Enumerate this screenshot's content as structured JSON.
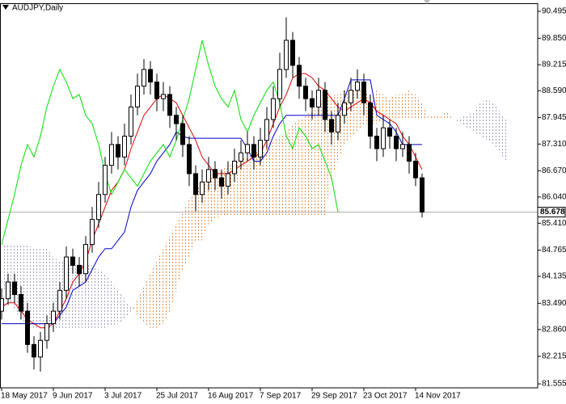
{
  "chart_data": {
    "type": "candlestick",
    "title": "AUDJPY,Daily",
    "categories": [
      "18 May 2017",
      null,
      null,
      null,
      null,
      null,
      null,
      null,
      "9 Jun 2017",
      null,
      null,
      null,
      null,
      null,
      null,
      null,
      "3 Jul 2017",
      null,
      null,
      null,
      null,
      null,
      null,
      null,
      "25 Jul 2017",
      null,
      null,
      null,
      null,
      null,
      null,
      null,
      "16 Aug 2017",
      null,
      null,
      null,
      null,
      null,
      null,
      null,
      "7 Sep 2017",
      null,
      null,
      null,
      null,
      null,
      null,
      null,
      "29 Sep 2017",
      null,
      null,
      null,
      null,
      null,
      null,
      null,
      "23 Oct 2017",
      null,
      null,
      null,
      null,
      null,
      null,
      null,
      "14 Nov 2017",
      null,
      null,
      null,
      null,
      null,
      null,
      null,
      null,
      null,
      null,
      null,
      null,
      null,
      null
    ],
    "candles": {
      "up_color": "#ffffff",
      "down_color": "#000000",
      "open": [
        83.3,
        83.6,
        84.0,
        83.7,
        83.3,
        82.5,
        82.2,
        82.6,
        83.0,
        83.3,
        83.8,
        84.6,
        84.4,
        84.2,
        84.9,
        85.5,
        86.1,
        86.8,
        87.3,
        87.0,
        87.5,
        88.2,
        88.7,
        89.1,
        88.8,
        88.4,
        88.5,
        88.0,
        87.8,
        87.3,
        86.6,
        86.1,
        86.4,
        86.7,
        86.5,
        86.3,
        86.6,
        86.9,
        87.1,
        87.3,
        87.0,
        87.4,
        87.9,
        88.4,
        89.1,
        89.8,
        89.2,
        88.7,
        88.4,
        88.2,
        88.6,
        87.9,
        87.6,
        88.0,
        88.3,
        88.6,
        88.8,
        88.3,
        87.5,
        87.2,
        87.7,
        87.5,
        87.2,
        87.3,
        86.9,
        86.5,
        null,
        null,
        null,
        null,
        null,
        null,
        null,
        null,
        null,
        null,
        null,
        null,
        null
      ],
      "high": [
        83.85,
        84.2,
        84.2,
        83.9,
        83.5,
        82.7,
        82.8,
        83.2,
        83.5,
        84.0,
        84.85,
        84.8,
        84.6,
        85.1,
        85.8,
        86.4,
        87.0,
        87.6,
        87.5,
        87.8,
        88.5,
        89.0,
        89.35,
        89.3,
        89.0,
        88.8,
        88.7,
        88.2,
        88.0,
        87.5,
        86.8,
        86.7,
        87.0,
        86.9,
        86.7,
        86.9,
        87.2,
        87.4,
        87.6,
        87.5,
        87.7,
        88.2,
        88.7,
        89.5,
        90.35,
        90.0,
        89.4,
        88.9,
        88.6,
        88.9,
        88.8,
        88.1,
        88.3,
        88.6,
        88.9,
        89.1,
        89.0,
        88.5,
        87.7,
        88.0,
        87.9,
        87.7,
        87.6,
        87.5,
        87.1,
        86.6,
        null,
        null,
        null,
        null,
        null,
        null,
        null,
        null,
        null,
        null,
        null,
        null,
        null
      ],
      "low": [
        83.1,
        83.45,
        83.5,
        83.1,
        82.3,
        81.9,
        81.85,
        82.4,
        82.8,
        83.1,
        83.6,
        84.2,
        83.9,
        84.0,
        84.7,
        85.3,
        85.9,
        86.6,
        86.7,
        86.8,
        87.3,
        88.0,
        88.5,
        88.5,
        88.1,
        88.1,
        87.7,
        87.4,
        87.0,
        86.3,
        85.7,
        85.9,
        86.2,
        86.2,
        86.0,
        86.1,
        86.4,
        86.7,
        86.9,
        86.7,
        86.8,
        87.2,
        87.7,
        88.2,
        88.9,
        88.9,
        88.4,
        88.1,
        87.9,
        88.0,
        87.6,
        87.3,
        87.4,
        87.8,
        88.1,
        88.4,
        88.0,
        87.2,
        86.9,
        87.0,
        87.2,
        86.9,
        87.0,
        86.6,
        86.3,
        85.55,
        null,
        null,
        null,
        null,
        null,
        null,
        null,
        null,
        null,
        null,
        null,
        null,
        null
      ],
      "close": [
        83.6,
        84.0,
        83.7,
        83.3,
        82.5,
        82.2,
        82.6,
        83.0,
        83.3,
        83.8,
        84.6,
        84.4,
        84.2,
        84.9,
        85.5,
        86.1,
        86.8,
        87.3,
        87.0,
        87.5,
        88.2,
        88.7,
        89.1,
        88.8,
        88.4,
        88.5,
        88.0,
        87.8,
        87.3,
        86.6,
        86.1,
        86.4,
        86.7,
        86.5,
        86.3,
        86.6,
        86.9,
        87.1,
        87.3,
        87.0,
        87.4,
        87.9,
        88.4,
        89.1,
        89.8,
        89.2,
        88.7,
        88.4,
        88.2,
        88.6,
        87.9,
        87.6,
        88.0,
        88.3,
        88.6,
        88.8,
        88.3,
        87.5,
        87.2,
        87.7,
        87.5,
        87.2,
        87.3,
        86.9,
        86.5,
        85.678,
        null,
        null,
        null,
        null,
        null,
        null,
        null,
        null,
        null,
        null,
        null,
        null,
        null
      ]
    },
    "lines": [
      {
        "color": "#e00000",
        "values": [
          83.4,
          83.5,
          83.5,
          83.3,
          83.1,
          83.0,
          82.9,
          82.9,
          83.0,
          83.3,
          83.6,
          84.0,
          84.2,
          84.5,
          85.0,
          85.4,
          85.8,
          86.2,
          86.4,
          86.7,
          87.2,
          87.6,
          88.0,
          88.2,
          88.4,
          88.5,
          88.4,
          88.3,
          88.0,
          87.7,
          87.4,
          87.0,
          86.8,
          86.6,
          86.6,
          86.6,
          86.7,
          86.8,
          86.9,
          87.0,
          87.1,
          87.4,
          87.8,
          88.2,
          88.5,
          88.9,
          89.0,
          89.0,
          88.9,
          88.7,
          88.6,
          88.4,
          88.2,
          88.1,
          88.2,
          88.3,
          88.4,
          88.3,
          88.1,
          88.0,
          87.9,
          87.8,
          87.5,
          87.3,
          87.0,
          86.7,
          null,
          null,
          null,
          null,
          null,
          null,
          null,
          null,
          null,
          null,
          null,
          null,
          null
        ]
      },
      {
        "color": "#0000c8",
        "values": [
          83.0,
          83.0,
          83.0,
          83.0,
          83.0,
          83.0,
          83.0,
          83.0,
          83.0,
          83.2,
          83.4,
          83.8,
          83.9,
          84.0,
          84.3,
          84.6,
          84.8,
          84.8,
          85.0,
          85.2,
          85.8,
          86.2,
          86.4,
          86.6,
          86.9,
          87.1,
          87.3,
          87.6,
          87.5,
          87.45,
          87.45,
          87.45,
          87.45,
          87.45,
          87.45,
          87.45,
          87.45,
          87.45,
          87.2,
          86.9,
          86.9,
          87.1,
          87.5,
          87.8,
          88.0,
          88.0,
          88.0,
          88.0,
          88.0,
          88.0,
          88.0,
          88.0,
          88.0,
          88.4,
          88.85,
          88.85,
          88.85,
          88.85,
          88.0,
          87.9,
          87.8,
          87.6,
          87.3,
          87.3,
          87.3,
          87.3,
          null,
          null,
          null,
          null,
          null,
          null,
          null,
          null,
          null,
          null,
          null,
          null,
          null
        ]
      },
      {
        "color": "#00e000",
        "values": [
          84.9,
          85.5,
          86.1,
          86.8,
          87.3,
          87.0,
          87.5,
          88.2,
          88.7,
          89.1,
          88.8,
          88.4,
          88.5,
          88.0,
          87.8,
          87.3,
          86.6,
          86.1,
          86.4,
          86.7,
          86.5,
          86.3,
          86.6,
          86.9,
          87.1,
          87.3,
          87.0,
          87.4,
          87.9,
          88.4,
          89.1,
          89.8,
          89.2,
          88.7,
          88.4,
          88.2,
          88.6,
          87.9,
          87.6,
          88.0,
          88.3,
          88.6,
          88.8,
          88.3,
          87.5,
          87.2,
          87.7,
          87.5,
          87.2,
          87.3,
          86.9,
          86.5,
          85.678,
          null,
          null,
          null,
          null,
          null,
          null,
          null,
          null,
          null,
          null,
          null,
          null,
          null,
          null,
          null,
          null,
          null,
          null,
          null,
          null,
          null,
          null,
          null,
          null,
          null,
          null
        ]
      }
    ],
    "cloud": {
      "up_color": "#e8904a",
      "down_color": "#a89cc0",
      "span_a": [
        84.0,
        83.6,
        83.3,
        83.1,
        83.0,
        82.9,
        82.9,
        82.9,
        82.9,
        82.9,
        82.9,
        82.9,
        82.9,
        82.9,
        82.9,
        82.9,
        82.9,
        82.95,
        83.0,
        83.1,
        83.3,
        83.6,
        83.9,
        84.2,
        84.5,
        84.8,
        85.1,
        85.4,
        85.7,
        86.0,
        86.2,
        86.4,
        86.5,
        86.6,
        86.7,
        86.8,
        86.9,
        87.0,
        87.0,
        87.1,
        87.2,
        87.3,
        87.4,
        87.5,
        87.6,
        87.8,
        87.9,
        88.0,
        88.1,
        88.3,
        88.4,
        88.5,
        88.5,
        88.6,
        88.6,
        88.6,
        88.6,
        88.5,
        88.6,
        88.5,
        88.4,
        88.5,
        88.5,
        88.6,
        88.5,
        88.3,
        88.0,
        88.0,
        88.0,
        88.1,
        87.9,
        87.8,
        87.7,
        87.6,
        87.5,
        87.4,
        87.3,
        87.1,
        86.9
      ],
      "span_b": [
        84.9,
        84.9,
        84.9,
        84.9,
        84.9,
        84.8,
        84.8,
        84.8,
        84.6,
        84.5,
        84.5,
        84.4,
        84.4,
        84.4,
        84.4,
        84.3,
        84.2,
        84.0,
        83.8,
        83.6,
        83.4,
        83.2,
        83.0,
        82.9,
        82.9,
        83.0,
        83.3,
        83.8,
        84.3,
        84.6,
        85.0,
        85.0,
        85.4,
        85.5,
        85.6,
        85.6,
        85.6,
        85.6,
        85.6,
        85.6,
        85.6,
        85.6,
        85.6,
        85.6,
        85.6,
        85.6,
        85.6,
        85.6,
        85.6,
        85.6,
        85.6,
        86.5,
        86.9,
        87.3,
        87.5,
        87.6,
        87.8,
        87.8,
        87.8,
        87.9,
        87.9,
        87.9,
        87.9,
        87.9,
        87.9,
        87.9,
        87.9,
        87.9,
        87.9,
        87.9,
        87.9,
        87.95,
        88.0,
        88.1,
        88.3,
        88.4,
        88.3,
        88.1,
        87.9
      ]
    },
    "last_price": 85.678,
    "ylim": [
      81.46,
      90.69
    ],
    "yticks": [
      90.495,
      {
        "value": 89.85,
        "label": "89.850"
      },
      89.215,
      {
        "value": 88.59,
        "label": "88.590"
      },
      87.945,
      {
        "value": 87.31,
        "label": "87.310"
      },
      {
        "value": 86.67,
        "label": "86.670"
      },
      {
        "value": 86.04,
        "label": "86.040"
      },
      {
        "value": 85.41,
        "label": "85.410"
      },
      84.765,
      84.135,
      {
        "value": 83.49,
        "label": "83.490"
      },
      {
        "value": 82.86,
        "label": "82.860"
      },
      82.215,
      81.555
    ],
    "grid": false
  }
}
